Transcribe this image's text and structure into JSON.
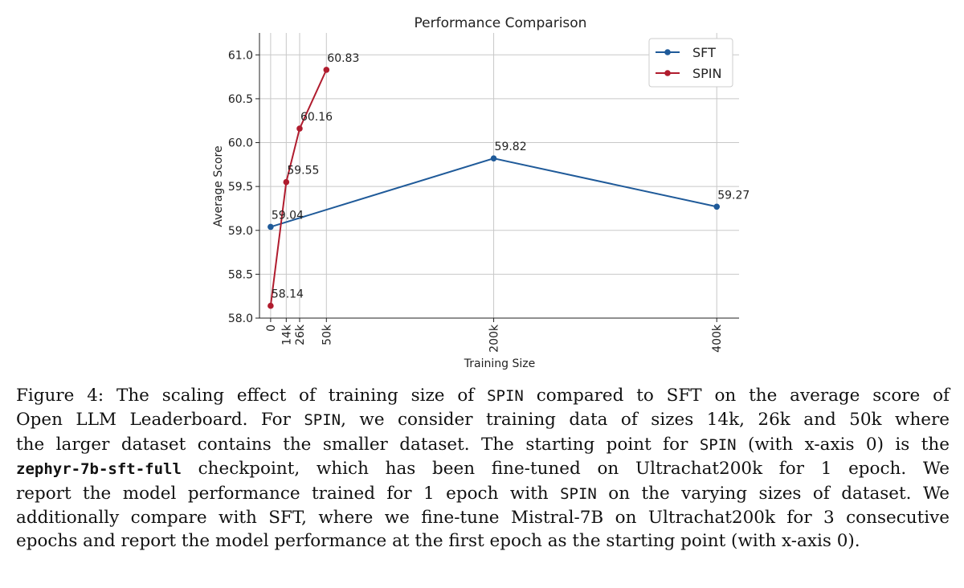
{
  "chart_data": {
    "type": "line",
    "title": "Performance Comparison",
    "xlabel": "Training Size",
    "ylabel": "Average Score",
    "x_ticks": [
      {
        "value": 0,
        "label": "0"
      },
      {
        "value": 14,
        "label": "14k"
      },
      {
        "value": 26,
        "label": "26k"
      },
      {
        "value": 50,
        "label": "50k"
      },
      {
        "value": 200,
        "label": "200k"
      },
      {
        "value": 400,
        "label": "400k"
      }
    ],
    "y_ticks": [
      58.0,
      58.5,
      59.0,
      59.5,
      60.0,
      60.5,
      61.0
    ],
    "ylim": [
      58.0,
      61.25
    ],
    "xlim": [
      -10,
      420
    ],
    "grid": true,
    "legend_position": "top-right",
    "series": [
      {
        "name": "SFT",
        "color": "#1f5a99",
        "x": [
          0,
          200,
          400
        ],
        "y": [
          59.04,
          59.82,
          59.27
        ],
        "labels": [
          "59.04",
          "59.82",
          "59.27"
        ]
      },
      {
        "name": "SPIN",
        "color": "#b01c2e",
        "x": [
          0,
          14,
          26,
          50
        ],
        "y": [
          58.14,
          59.55,
          60.16,
          60.83
        ],
        "labels": [
          "58.14",
          "59.55",
          "60.16",
          "60.83"
        ]
      }
    ]
  },
  "caption": {
    "lines": [
      [
        {
          "t": "Figure 4:  The scaling effect of training size of "
        },
        {
          "t": "SPIN",
          "s": "mono"
        },
        {
          "t": " compared to SFT on the average score of"
        }
      ],
      [
        {
          "t": "Open LLM Leaderboard.  For "
        },
        {
          "t": "SPIN",
          "s": "mono"
        },
        {
          "t": ", we consider training data of sizes 14k, 26k and 50k where"
        }
      ],
      [
        {
          "t": "the larger dataset contains the smaller dataset. The starting point for "
        },
        {
          "t": "SPIN",
          "s": "mono"
        },
        {
          "t": " (with x-axis 0) is the"
        }
      ],
      [
        {
          "t": "zephyr-7b-sft-full",
          "s": "mono bold"
        },
        {
          "t": " checkpoint, which has been fine-tuned on Ultrachat200k for 1 epoch.  We"
        }
      ],
      [
        {
          "t": "report the model performance trained for 1 epoch with "
        },
        {
          "t": "SPIN",
          "s": "mono"
        },
        {
          "t": " on the varying sizes of dataset. We"
        }
      ],
      [
        {
          "t": "additionally compare with SFT, where we fine-tune Mistral-7B on Ultrachat200k for 3 consecutive"
        }
      ],
      [
        {
          "t": "epochs and report the model performance at the first epoch as the starting point (with x-axis 0)."
        }
      ]
    ]
  }
}
